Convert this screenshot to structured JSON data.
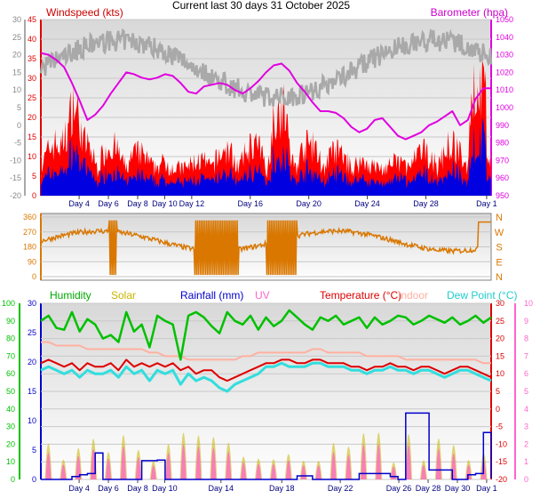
{
  "title": "Current last 30 days 31 October 2025",
  "colors": {
    "wind": "#e00000",
    "gust_area": "#ff0000",
    "wind_avg": "#0000e0",
    "dir_gray": "#a9a9a9",
    "baro": "#e000e0",
    "direction": "#d97700",
    "humidity": "#00c000",
    "solar": "#c8b400",
    "rainfall": "#0000cc",
    "uv": "#ff66cc",
    "temperature": "#dd0000",
    "indoor": "#ffb0a0",
    "dewpoint": "#33dddd",
    "chill": "#9999ff",
    "axis_text": "#000080"
  },
  "x_labels": {
    "top": [
      "Day 4",
      "Day 6",
      "Day 8",
      "Day 10",
      "Day 12",
      "Day 16",
      "Day 20",
      "Day 24",
      "Day 28",
      "Day 1"
    ],
    "bottom": [
      "Day 4",
      "Day 6",
      "Day 8",
      "Day 10",
      "Day 14",
      "Day 18",
      "Day 22",
      "Day 26",
      "Day 28",
      "Day 30",
      "Day 1"
    ]
  },
  "chart_data": [
    {
      "type": "area",
      "panel": "wind_baro",
      "series": [
        {
          "name": "Windspeed (kts)",
          "unit": "kts"
        },
        {
          "name": "Barometer (hpa)",
          "unit": "hpa"
        }
      ],
      "left_axis_label": "Windspeed (kts)",
      "right_axis_label": "Barometer (hpa)",
      "left_ticks": [
        "45",
        "40",
        "35",
        "30",
        "25",
        "20",
        "15",
        "10",
        "5",
        "0"
      ],
      "left_ylim": [
        0,
        45
      ],
      "far_left_ticks": [
        "30",
        "25",
        "20",
        "15",
        "10",
        "5",
        "0",
        "-5",
        "-10",
        "-15",
        "-20"
      ],
      "far_left_ylim": [
        -20,
        30
      ],
      "right_ticks": [
        "1050",
        "1040",
        "1030",
        "1020",
        "1010",
        "1000",
        "990",
        "980",
        "970",
        "960",
        "950"
      ],
      "right_ylim": [
        950,
        1050
      ],
      "barometer_hpa": [
        1031,
        1030,
        1027,
        1023,
        1014,
        1004,
        993,
        996,
        1001,
        1008,
        1014,
        1020,
        1019,
        1017,
        1016,
        1017,
        1019,
        1018,
        1014,
        1009,
        1008,
        1012,
        1013,
        1014,
        1013,
        1010,
        1008,
        1011,
        1015,
        1020,
        1024,
        1025,
        1021,
        1014,
        1009,
        1003,
        998,
        998,
        997,
        994,
        989,
        986,
        988,
        993,
        994,
        989,
        984,
        982,
        984,
        986,
        990,
        992,
        995,
        998,
        990,
        993,
        1005,
        1011,
        1011
      ]
    },
    {
      "type": "line",
      "panel": "wind_direction",
      "left_ticks": [
        "360",
        "270",
        "180",
        "90",
        "0"
      ],
      "ylim": [
        0,
        360
      ],
      "right_ticks": [
        "N",
        "W",
        "S",
        "E",
        "N"
      ]
    },
    {
      "type": "line",
      "panel": "humidity_temp_rain",
      "series": [
        {
          "name": "Humidity"
        },
        {
          "name": "Solar"
        },
        {
          "name": "Rainfall (mm)"
        },
        {
          "name": "UV"
        },
        {
          "name": "Temperature (°C)"
        },
        {
          "name": "Indoor"
        },
        {
          "name": "Dew Point (°C)"
        }
      ],
      "humidity_ticks": [
        "100",
        "90",
        "80",
        "70",
        "60",
        "50",
        "40",
        "30",
        "20",
        "10",
        "0"
      ],
      "humidity_ylim": [
        0,
        100
      ],
      "rain_ticks": [
        "30",
        "25",
        "20",
        "15",
        "10",
        "5",
        "0"
      ],
      "rain_ylim": [
        0,
        30
      ],
      "temp_ticks": [
        "30",
        "25",
        "20",
        "15",
        "10",
        "5",
        "0",
        "-5",
        "-10",
        "-15",
        "-20"
      ],
      "temp_ylim": [
        -20,
        30
      ],
      "uv_ticks": [
        "10",
        "9",
        "8",
        "7",
        "6",
        "5",
        "4",
        "3",
        "2",
        "1",
        "0"
      ],
      "uv_ylim": [
        0,
        10
      ],
      "humidity_pct": [
        90,
        93,
        86,
        85,
        95,
        84,
        91,
        88,
        80,
        82,
        78,
        95,
        84,
        88,
        75,
        93,
        90,
        88,
        68,
        93,
        95,
        92,
        87,
        83,
        95,
        90,
        88,
        93,
        85,
        92,
        87,
        90,
        96,
        92,
        88,
        85,
        92,
        90,
        93,
        88,
        90,
        92,
        86,
        92,
        88,
        90,
        93,
        92,
        88,
        90,
        93,
        91,
        89,
        92,
        88,
        90,
        93,
        89,
        92
      ],
      "temperature_c": [
        13,
        14,
        13,
        12,
        13,
        11,
        13,
        12,
        12,
        13,
        11,
        14,
        12,
        13,
        12,
        13,
        12,
        13,
        11,
        12,
        10,
        11,
        11,
        9,
        8,
        9,
        10,
        11,
        12,
        13,
        13,
        14,
        14,
        13,
        13,
        14,
        14,
        13,
        13,
        13,
        12,
        12,
        11,
        12,
        12,
        13,
        12,
        12,
        11,
        12,
        12,
        11,
        10,
        11,
        12,
        12,
        11,
        10,
        9
      ],
      "dewpoint_c": [
        11,
        12,
        11,
        10,
        11,
        9,
        11,
        10,
        10,
        11,
        9,
        12,
        10,
        11,
        8,
        11,
        10,
        11,
        7,
        10,
        8,
        9,
        8,
        6,
        5,
        7,
        8,
        9,
        10,
        12,
        12,
        13,
        12,
        12,
        12,
        13,
        13,
        12,
        12,
        12,
        11,
        11,
        10,
        11,
        11,
        12,
        11,
        11,
        10,
        11,
        11,
        10,
        9,
        10,
        11,
        11,
        10,
        9,
        8
      ],
      "indoor_c": [
        19,
        19,
        18,
        18,
        18,
        18,
        17,
        17,
        17,
        17,
        17,
        17,
        17,
        17,
        16,
        16,
        15,
        15,
        15,
        14,
        14,
        14,
        14,
        14,
        14,
        14,
        15,
        15,
        16,
        16,
        16,
        16,
        16,
        16,
        16,
        17,
        17,
        16,
        16,
        16,
        16,
        16,
        15,
        15,
        15,
        15,
        15,
        14,
        14,
        14,
        14,
        14,
        14,
        14,
        14,
        14,
        14,
        13,
        13
      ],
      "rainfall_mm": [
        0,
        0,
        0,
        0,
        0.5,
        0.8,
        1.0,
        4.5,
        0,
        0,
        0,
        0,
        0,
        3.2,
        3.2,
        3.3,
        0,
        0,
        0,
        0,
        0,
        0,
        0,
        0,
        0,
        0,
        0,
        0,
        0,
        0,
        0,
        0,
        0,
        0.6,
        0.6,
        0,
        0,
        0,
        0,
        0,
        0,
        1.0,
        1.0,
        1.0,
        1.0,
        0.5,
        0,
        11.3,
        11.3,
        11.3,
        1.6,
        1.6,
        1.6,
        0,
        0,
        0.8,
        1.0,
        8.0,
        0.2
      ]
    }
  ]
}
